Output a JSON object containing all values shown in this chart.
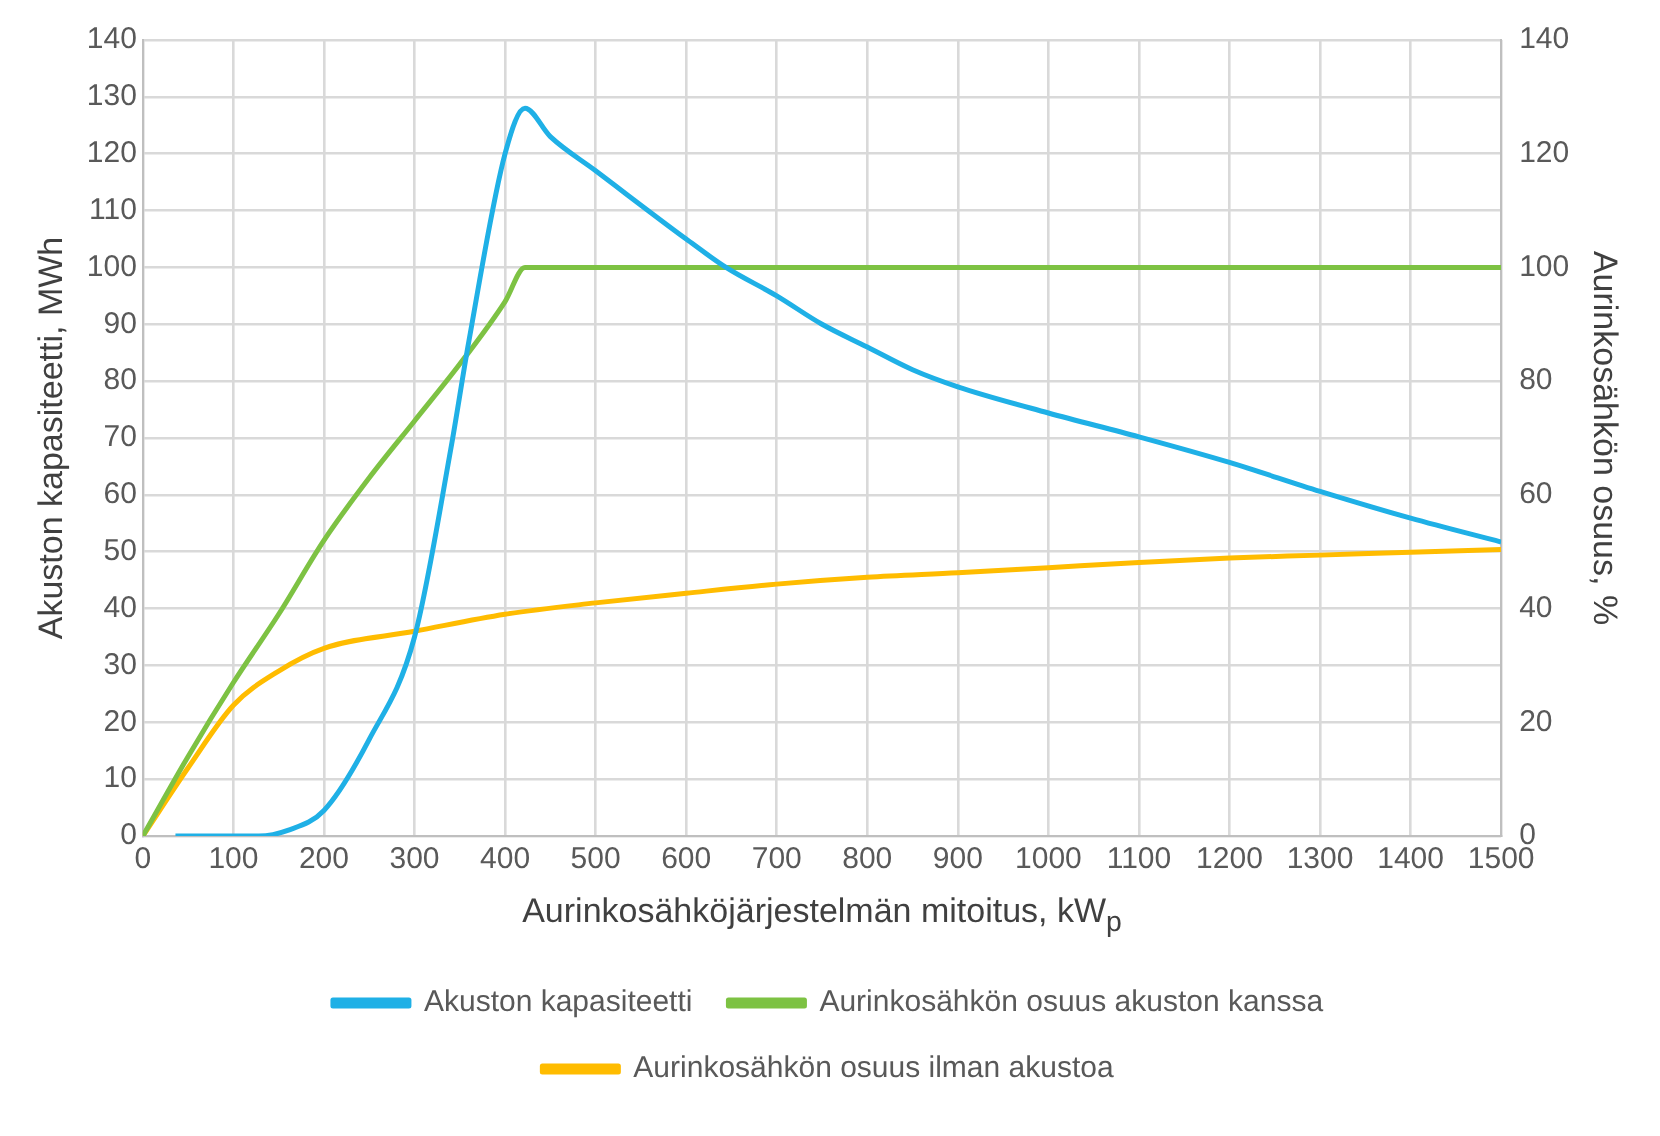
{
  "chart_data": {
    "type": "line",
    "xlabel": "Aurinkosähköjärjestelmän mitoitus, kW$_{p}$",
    "ylabel": "Akuston kapasiteetti, MWh",
    "y2label": "Aurinkosähkön osuus, %",
    "xlim": [
      0,
      1500
    ],
    "xticks": [
      0,
      100,
      200,
      300,
      400,
      500,
      600,
      700,
      800,
      900,
      1000,
      1100,
      1200,
      1300,
      1400,
      1500
    ],
    "ylim": [
      0,
      140
    ],
    "yticks": [
      0,
      10,
      20,
      30,
      40,
      50,
      60,
      70,
      80,
      90,
      100,
      110,
      120,
      130,
      140
    ],
    "y2lim": [
      0,
      140
    ],
    "y2ticks": [
      0,
      20,
      40,
      60,
      80,
      100,
      120,
      140
    ],
    "grid": true,
    "legend": "bottom",
    "marker": "none",
    "line_style": "solid",
    "series": [
      {
        "name": "Akuston kapasiteetti",
        "color": "#1fb0e6",
        "x": [
          36,
          80,
          128,
          160,
          200,
          250,
          300,
          340,
          360,
          400,
          422,
          450,
          500,
          600,
          644,
          700,
          750,
          800,
          850,
          900,
          1000,
          1100,
          1200,
          1300,
          1400,
          1500
        ],
        "values": [
          0,
          0,
          0,
          1,
          4.5,
          17,
          35,
          68,
          87,
          120,
          128,
          123,
          117,
          105,
          100,
          95,
          90,
          86,
          82,
          79,
          74.4,
          70.2,
          65.7,
          60.6,
          55.9,
          51.7
        ]
      },
      {
        "name": "Aurinkosähkön osuus akuston kanssa",
        "color": "#7dc243",
        "x": [
          0,
          50,
          100,
          150,
          200,
          250,
          300,
          350,
          400,
          422,
          450,
          1500
        ],
        "values": [
          0,
          14,
          27,
          39,
          52,
          63,
          73,
          83,
          94,
          100,
          100,
          100
        ]
      },
      {
        "name": "Aurinkosähkön osuus ilman akustoa",
        "color": "#ffbc00",
        "x": [
          0,
          50,
          100,
          150,
          200,
          300,
          400,
          500,
          600,
          700,
          800,
          900,
          1000,
          1100,
          1200,
          1300,
          1400,
          1500
        ],
        "values": [
          0,
          12,
          23,
          29,
          33,
          36,
          39,
          41,
          42.7,
          44.3,
          45.5,
          46.3,
          47.2,
          48.1,
          48.9,
          49.4,
          49.9,
          50.4
        ]
      }
    ]
  }
}
